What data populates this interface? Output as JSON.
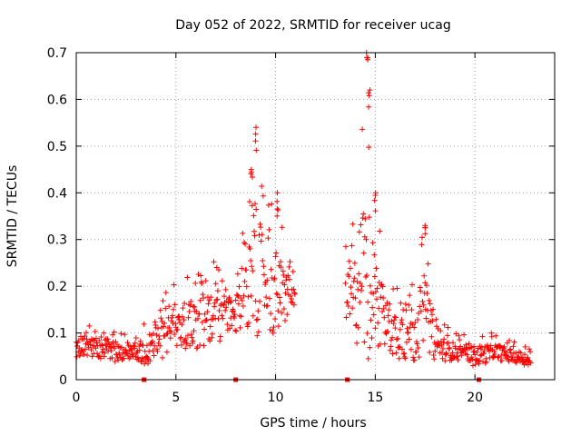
{
  "chart_data": {
    "type": "scatter",
    "title": "Day 052 of 2022, SRMTID for receiver ucag",
    "xlabel": "GPS time / hours",
    "ylabel": "SRMTID / TECUs",
    "xlim": [
      0,
      24
    ],
    "ylim": [
      0,
      0.7
    ],
    "xticks": [
      0,
      5,
      10,
      15,
      20
    ],
    "xtick_labels": [
      "0",
      "5",
      "10",
      "15",
      "20"
    ],
    "yticks": [
      0,
      0.1,
      0.2,
      0.3,
      0.4,
      0.5,
      0.6,
      0.7
    ],
    "ytick_labels": [
      "0",
      "0.1",
      "0.2",
      "0.3",
      "0.4",
      "0.5",
      "0.6",
      "0.7"
    ],
    "grid": true,
    "marker": "+",
    "series_color": "#ff0000",
    "gaps_hours": [
      [
        11.0,
        13.5
      ]
    ],
    "zero_markers_x": [
      3.4,
      8.0,
      13.6,
      20.2
    ],
    "envelope": {
      "x": [
        0,
        1,
        2,
        3,
        3.5,
        4,
        5,
        6,
        7,
        8,
        8.5,
        9,
        9.5,
        10,
        11,
        13.5,
        14,
        14.5,
        15,
        15.5,
        16,
        17,
        17.5,
        18,
        19,
        20,
        21,
        22,
        23
      ],
      "median": [
        0.07,
        0.07,
        0.06,
        0.06,
        0.06,
        0.08,
        0.1,
        0.12,
        0.13,
        0.13,
        0.2,
        0.23,
        0.2,
        0.18,
        0.18,
        0.16,
        0.18,
        0.2,
        0.17,
        0.12,
        0.1,
        0.1,
        0.15,
        0.07,
        0.06,
        0.05,
        0.06,
        0.05,
        0.04
      ],
      "upper": [
        0.12,
        0.12,
        0.11,
        0.1,
        0.13,
        0.16,
        0.22,
        0.24,
        0.26,
        0.22,
        0.38,
        0.54,
        0.4,
        0.4,
        0.22,
        0.28,
        0.38,
        0.7,
        0.4,
        0.25,
        0.22,
        0.25,
        0.33,
        0.14,
        0.1,
        0.1,
        0.1,
        0.08,
        0.07
      ]
    },
    "peaks": [
      {
        "x": 9.0,
        "y": 0.54
      },
      {
        "x": 8.8,
        "y": 0.45
      },
      {
        "x": 10.1,
        "y": 0.4
      },
      {
        "x": 14.6,
        "y": 0.7
      },
      {
        "x": 14.7,
        "y": 0.62
      },
      {
        "x": 15.0,
        "y": 0.4
      },
      {
        "x": 17.5,
        "y": 0.33
      }
    ]
  }
}
